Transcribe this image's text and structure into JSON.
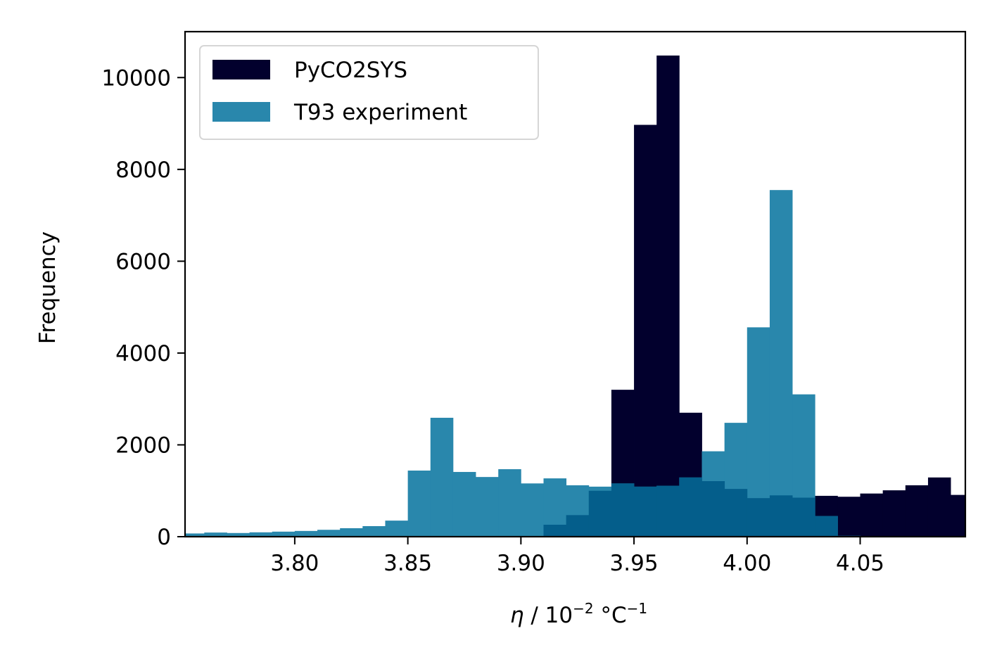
{
  "chart_data": {
    "type": "bar",
    "histogram": true,
    "bin_width": 0.01,
    "xlabel_symbol": "η",
    "xlabel_rest": " / 10",
    "xlabel_exp": "−2",
    "xlabel_unit": " °C",
    "xlabel_unit_exp": "−1",
    "ylabel": "Frequency",
    "xlim": [
      3.7515,
      4.0965
    ],
    "ylim": [
      0,
      11000
    ],
    "xticks": [
      3.8,
      3.85,
      3.9,
      3.95,
      4.0,
      4.05
    ],
    "xtick_labels": [
      "3.80",
      "3.85",
      "3.90",
      "3.95",
      "4.00",
      "4.05"
    ],
    "yticks": [
      0,
      2000,
      4000,
      6000,
      8000,
      10000
    ],
    "ytick_labels": [
      "0",
      "2000",
      "4000",
      "6000",
      "8000",
      "10000"
    ],
    "grid": false,
    "legend_position": "upper-left",
    "overlap_color": "#045e8b",
    "series": [
      {
        "name": "PyCO2SYS",
        "color": "#02002d",
        "bins": [
          {
            "x0": 3.91,
            "x1": 3.92,
            "value": 260
          },
          {
            "x0": 3.92,
            "x1": 3.93,
            "value": 470
          },
          {
            "x0": 3.93,
            "x1": 3.94,
            "value": 1000
          },
          {
            "x0": 3.94,
            "x1": 3.95,
            "value": 3200
          },
          {
            "x0": 3.95,
            "x1": 3.96,
            "value": 8970
          },
          {
            "x0": 3.96,
            "x1": 3.97,
            "value": 10480
          },
          {
            "x0": 3.97,
            "x1": 3.98,
            "value": 2700
          },
          {
            "x0": 3.98,
            "x1": 3.99,
            "value": 1210
          },
          {
            "x0": 3.99,
            "x1": 4.0,
            "value": 1040
          },
          {
            "x0": 4.0,
            "x1": 4.01,
            "value": 840
          },
          {
            "x0": 4.01,
            "x1": 4.02,
            "value": 900
          },
          {
            "x0": 4.02,
            "x1": 4.03,
            "value": 850
          },
          {
            "x0": 4.03,
            "x1": 4.04,
            "value": 890
          },
          {
            "x0": 4.04,
            "x1": 4.05,
            "value": 870
          },
          {
            "x0": 4.05,
            "x1": 4.06,
            "value": 940
          },
          {
            "x0": 4.06,
            "x1": 4.07,
            "value": 1010
          },
          {
            "x0": 4.07,
            "x1": 4.08,
            "value": 1120
          },
          {
            "x0": 4.08,
            "x1": 4.09,
            "value": 1290
          },
          {
            "x0": 4.09,
            "x1": 4.0965,
            "value": 910
          }
        ]
      },
      {
        "name": "T93 experiment",
        "color": "#2987ac",
        "bins": [
          {
            "x0": 3.7515,
            "x1": 3.76,
            "value": 70
          },
          {
            "x0": 3.76,
            "x1": 3.77,
            "value": 90
          },
          {
            "x0": 3.77,
            "x1": 3.78,
            "value": 80
          },
          {
            "x0": 3.78,
            "x1": 3.79,
            "value": 95
          },
          {
            "x0": 3.79,
            "x1": 3.8,
            "value": 110
          },
          {
            "x0": 3.8,
            "x1": 3.81,
            "value": 125
          },
          {
            "x0": 3.81,
            "x1": 3.82,
            "value": 150
          },
          {
            "x0": 3.82,
            "x1": 3.83,
            "value": 185
          },
          {
            "x0": 3.83,
            "x1": 3.84,
            "value": 230
          },
          {
            "x0": 3.84,
            "x1": 3.85,
            "value": 350
          },
          {
            "x0": 3.85,
            "x1": 3.86,
            "value": 1440
          },
          {
            "x0": 3.86,
            "x1": 3.87,
            "value": 2590
          },
          {
            "x0": 3.87,
            "x1": 3.88,
            "value": 1410
          },
          {
            "x0": 3.88,
            "x1": 3.89,
            "value": 1300
          },
          {
            "x0": 3.89,
            "x1": 3.9,
            "value": 1470
          },
          {
            "x0": 3.9,
            "x1": 3.91,
            "value": 1160
          },
          {
            "x0": 3.91,
            "x1": 3.92,
            "value": 1270
          },
          {
            "x0": 3.92,
            "x1": 3.93,
            "value": 1120
          },
          {
            "x0": 3.93,
            "x1": 3.94,
            "value": 1090
          },
          {
            "x0": 3.94,
            "x1": 3.95,
            "value": 1160
          },
          {
            "x0": 3.95,
            "x1": 3.96,
            "value": 1090
          },
          {
            "x0": 3.96,
            "x1": 3.97,
            "value": 1110
          },
          {
            "x0": 3.97,
            "x1": 3.98,
            "value": 1290
          },
          {
            "x0": 3.98,
            "x1": 3.99,
            "value": 1860
          },
          {
            "x0": 3.99,
            "x1": 4.0,
            "value": 2480
          },
          {
            "x0": 4.0,
            "x1": 4.01,
            "value": 4560
          },
          {
            "x0": 4.01,
            "x1": 4.02,
            "value": 7550
          },
          {
            "x0": 4.02,
            "x1": 4.03,
            "value": 3100
          },
          {
            "x0": 4.03,
            "x1": 4.04,
            "value": 450
          },
          {
            "x0": 4.04,
            "x1": 4.05,
            "value": 20
          }
        ]
      }
    ]
  }
}
